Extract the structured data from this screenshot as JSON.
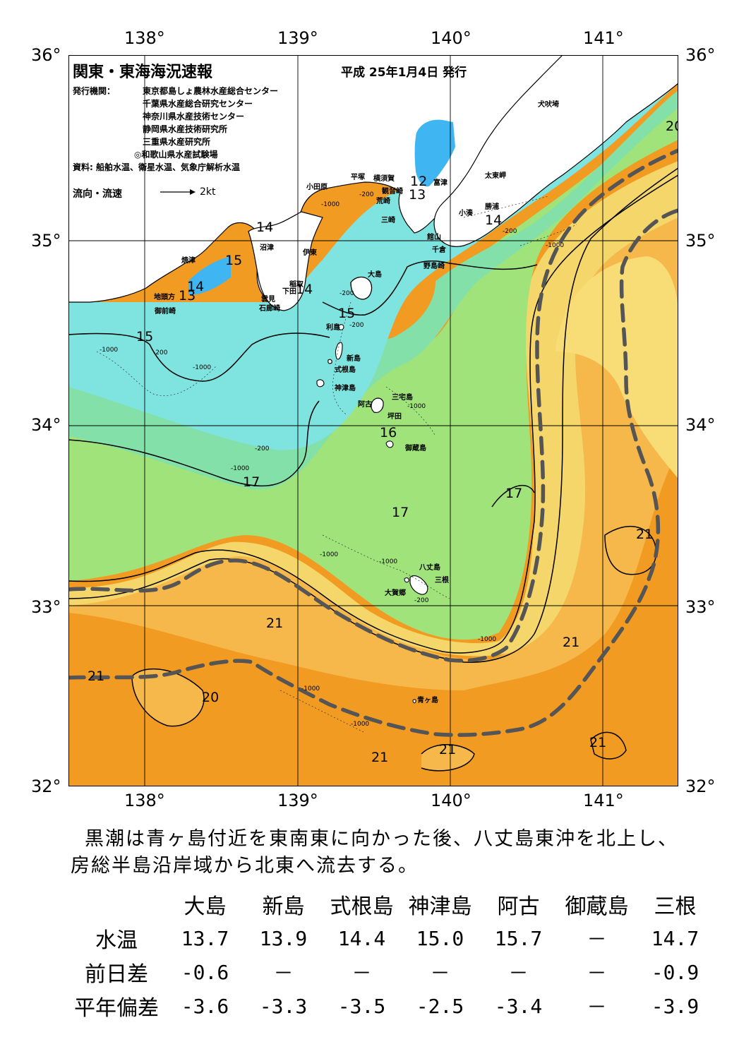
{
  "header": {
    "title": "関東・東海海況速報",
    "date": "平成 25年1月4日 発行",
    "issuer_label": "発行機関：",
    "issuers": [
      "東京都島しょ農林水産総合センター",
      "千葉県水産総合研究センター",
      "神奈川県水産技術センター",
      "静岡県水産技術研究所",
      "三重県水産研究所",
      "◎和歌山県水産試験場"
    ],
    "source": "資料: 船舶水温、衛星水温、気象庁解析水温",
    "flow_label": "流向・流速",
    "flow_scale": "2kt"
  },
  "axes": {
    "lon_labels": [
      "138°",
      "139°",
      "140°",
      "141°"
    ],
    "lat_labels": [
      "36°",
      "35°",
      "34°",
      "33°",
      "32°"
    ]
  },
  "places": [
    {
      "key": "inubosaki",
      "name": "犬吠埼"
    },
    {
      "key": "taitomisaki",
      "name": "太東岬"
    },
    {
      "key": "katsuura",
      "name": "勝浦"
    },
    {
      "key": "kominato",
      "name": "小湊"
    },
    {
      "key": "futtsu",
      "name": "富津"
    },
    {
      "key": "kannonzaki",
      "name": "観音崎"
    },
    {
      "key": "yokosuka",
      "name": "横須賀"
    },
    {
      "key": "hiratsuka",
      "name": "平塚"
    },
    {
      "key": "odawara",
      "name": "小田原"
    },
    {
      "key": "araisaki",
      "name": "荒崎"
    },
    {
      "key": "misaki",
      "name": "三崎"
    },
    {
      "key": "tateyama",
      "name": "館山"
    },
    {
      "key": "chikura",
      "name": "千倉"
    },
    {
      "key": "nojimazaki",
      "name": "野島崎"
    },
    {
      "key": "numazu",
      "name": "沼津"
    },
    {
      "key": "ito",
      "name": "伊東"
    },
    {
      "key": "yaizu",
      "name": "焼津"
    },
    {
      "key": "omaezaki",
      "name": "御前崎"
    },
    {
      "key": "jitogata",
      "name": "地頭方"
    },
    {
      "key": "inatori",
      "name": "稲取"
    },
    {
      "key": "shimoda",
      "name": "下田"
    },
    {
      "key": "kumomi",
      "name": "雲見"
    },
    {
      "key": "irozaki",
      "name": "石廊崎"
    },
    {
      "key": "oshima",
      "name": "大島"
    },
    {
      "key": "toshima",
      "name": "利島"
    },
    {
      "key": "niijima",
      "name": "新島"
    },
    {
      "key": "shikinejima",
      "name": "式根島"
    },
    {
      "key": "kozushima",
      "name": "神津島"
    },
    {
      "key": "ako",
      "name": "阿古"
    },
    {
      "key": "miyakejima",
      "name": "三宅島"
    },
    {
      "key": "tsubota",
      "name": "坪田"
    },
    {
      "key": "mikurajima",
      "name": "御蔵島"
    },
    {
      "key": "hachijojima",
      "name": "八丈島"
    },
    {
      "key": "mitsune",
      "name": "三根"
    },
    {
      "key": "okago",
      "name": "大賀郷"
    },
    {
      "key": "aogashima",
      "name": "青ヶ島"
    }
  ],
  "isotherms": [
    {
      "key": "t12",
      "value": "12"
    },
    {
      "key": "t13a",
      "value": "13"
    },
    {
      "key": "t14a",
      "value": "14"
    },
    {
      "key": "t14b",
      "value": "14"
    },
    {
      "key": "t14c",
      "value": "14"
    },
    {
      "key": "t14d",
      "value": "14"
    },
    {
      "key": "t13b",
      "value": "13"
    },
    {
      "key": "t15a",
      "value": "15"
    },
    {
      "key": "t15b",
      "value": "15"
    },
    {
      "key": "t15c",
      "value": "15"
    },
    {
      "key": "t16",
      "value": "16"
    },
    {
      "key": "t17a",
      "value": "17"
    },
    {
      "key": "t17b",
      "value": "17"
    },
    {
      "key": "t17c",
      "value": "17"
    },
    {
      "key": "t20a",
      "value": "20"
    },
    {
      "key": "t20b",
      "value": "20"
    },
    {
      "key": "t21a",
      "value": "21"
    },
    {
      "key": "t21b",
      "value": "21"
    },
    {
      "key": "t21c",
      "value": "21"
    },
    {
      "key": "t21d",
      "value": "21"
    },
    {
      "key": "t21e",
      "value": "21"
    },
    {
      "key": "t21f",
      "value": "21"
    },
    {
      "key": "t21g",
      "value": "21"
    }
  ],
  "depth_labels": {
    "d200": "-200",
    "d1000": "-1000"
  },
  "summary": [
    "黒潮は青ヶ島付近を東南東に向かった後、八丈島東沖を北上し、",
    "房総半島沿岸域から北東へ流去する。"
  ],
  "table": {
    "columns": [
      "大島",
      "新島",
      "式根島",
      "神津島",
      "阿古",
      "御蔵島",
      "三根"
    ],
    "rows": [
      {
        "label": "水温",
        "values": [
          "13.7",
          "13.9",
          "14.4",
          "15.0",
          "15.7",
          "－",
          "14.7"
        ]
      },
      {
        "label": "前日差",
        "values": [
          "-0.6",
          "－",
          "－",
          "－",
          "－",
          "－",
          "-0.9"
        ]
      },
      {
        "label": "平年偏差",
        "values": [
          "-3.6",
          "-3.3",
          "-3.5",
          "-2.5",
          "-3.4",
          "－",
          "-3.9"
        ]
      }
    ]
  },
  "colors": {
    "coldest": "#3fb6f2",
    "cold": "#7fe3df",
    "cool": "#82e0a8",
    "mild": "#9fe37a",
    "warm_yellow": "#f5d66a",
    "warm": "#f6b84a",
    "hot": "#f29b22",
    "kuroshio_axis": "#555555",
    "land": "#ffffff"
  }
}
